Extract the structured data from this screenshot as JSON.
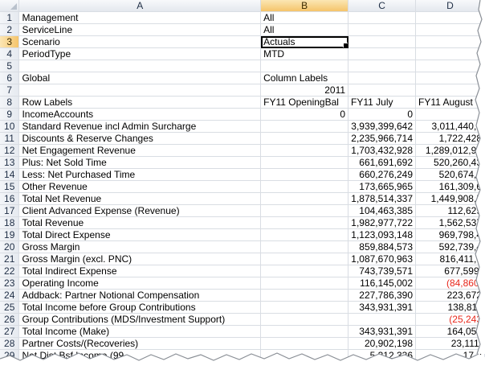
{
  "columns": [
    "A",
    "B",
    "C",
    "D"
  ],
  "active_column": "B",
  "active_row": 3,
  "rows": [
    {
      "n": "1",
      "a": "Management",
      "b": "All",
      "c": "",
      "d": ""
    },
    {
      "n": "2",
      "a": "ServiceLine",
      "b": "All",
      "c": "",
      "d": ""
    },
    {
      "n": "3",
      "a": "Scenario",
      "b": "Actuals",
      "c": "",
      "d": ""
    },
    {
      "n": "4",
      "a": "PeriodType",
      "b": "MTD",
      "c": "",
      "d": ""
    },
    {
      "n": "5",
      "a": "",
      "b": "",
      "c": "",
      "d": ""
    },
    {
      "n": "6",
      "a": "Global",
      "b": "Column Labels",
      "c": "",
      "d": ""
    },
    {
      "n": "7",
      "a": "",
      "b": "2011",
      "c": "",
      "d": ""
    },
    {
      "n": "8",
      "a": "Row Labels",
      "b": "FY11 OpeningBal",
      "c": "FY11 July",
      "d": "FY11 August"
    },
    {
      "n": "9",
      "a": "IncomeAccounts",
      "b": "0",
      "c": "0",
      "d": ""
    },
    {
      "n": "10",
      "a": "Standard Revenue incl Admin Surcharge",
      "b": "",
      "c": "3,939,399,642",
      "d": "3,011,440,9"
    },
    {
      "n": "11",
      "a": "Discounts & Reserve Changes",
      "b": "",
      "c": "2,235,966,714",
      "d": "1,722,428"
    },
    {
      "n": "12",
      "a": "Net Engagement Revenue",
      "b": "",
      "c": "1,703,432,928",
      "d": "1,289,012,92"
    },
    {
      "n": "13",
      "a": "Plus: Net Sold Time",
      "b": "",
      "c": "661,691,692",
      "d": "520,260,43"
    },
    {
      "n": "14",
      "a": "Less: Net Purchased Time",
      "b": "",
      "c": "660,276,249",
      "d": "520,674,5"
    },
    {
      "n": "15",
      "a": "Other Revenue",
      "b": "",
      "c": "173,665,965",
      "d": "161,309,6"
    },
    {
      "n": "16",
      "a": "Total Net Revenue",
      "b": "",
      "c": "1,878,514,337",
      "d": "1,449,908,5"
    },
    {
      "n": "17",
      "a": "Client Advanced Expense (Revenue)",
      "b": "",
      "c": "104,463,385",
      "d": "112,629"
    },
    {
      "n": "18",
      "a": "Total Revenue",
      "b": "",
      "c": "1,982,977,722",
      "d": "1,562,537"
    },
    {
      "n": "19",
      "a": "Total Direct Expense",
      "b": "",
      "c": "1,123,093,148",
      "d": "969,798,4"
    },
    {
      "n": "20",
      "a": "Gross Margin",
      "b": "",
      "c": "859,884,573",
      "d": "592,739,4"
    },
    {
      "n": "21",
      "a": "Gross Margin (excl. PNC)",
      "b": "",
      "c": "1,087,670,963",
      "d": "816,411,6"
    },
    {
      "n": "22",
      "a": "Total Indirect Expense",
      "b": "",
      "c": "743,739,571",
      "d": "677,599,"
    },
    {
      "n": "23",
      "a": "Operating Income",
      "b": "",
      "c": "116,145,002",
      "d": "(84,860,"
    },
    {
      "n": "24",
      "a": "Addback: Partner Notional Compensation",
      "b": "",
      "c": "227,786,390",
      "d": "223,672"
    },
    {
      "n": "25",
      "a": "Total Income before Group Contributions",
      "b": "",
      "c": "343,931,391",
      "d": "138,811"
    },
    {
      "n": "26",
      "a": "Group Contributions (MDS/Investment Support)",
      "b": "",
      "c": "",
      "d": "(25,243"
    },
    {
      "n": "27",
      "a": "Total Income (Make)",
      "b": "",
      "c": "343,931,391",
      "d": "164,055"
    },
    {
      "n": "28",
      "a": "Partner Costs/(Recoveries)",
      "b": "",
      "c": "20,902,198",
      "d": "23,111,"
    },
    {
      "n": "29",
      "a": "Net Dist Bsf Income (99",
      "b": "",
      "c": "5,312,336",
      "d": "17,3"
    }
  ]
}
